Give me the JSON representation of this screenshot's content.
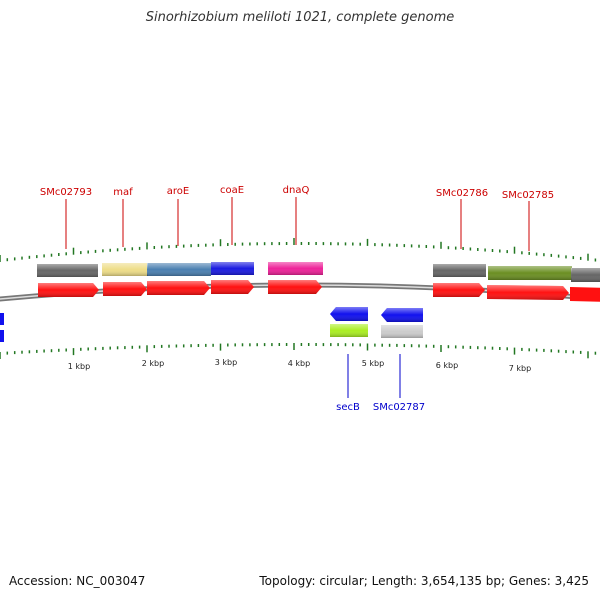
{
  "title": "Sinorhizobium meliloti 1021, complete genome",
  "footer": {
    "accession": "Accession: NC_003047",
    "stats": "Topology: circular; Length: 3,654,135 bp; Genes: 3,425"
  },
  "scale_labels": [
    "1 kbp",
    "2 kbp",
    "3 kbp",
    "4 kbp",
    "5 kbp",
    "6 kbp",
    "7 kbp"
  ],
  "forward_gene_labels": [
    "SMc02793",
    "maf",
    "aroE",
    "coaE",
    "dnaQ",
    "SMc02786",
    "SMc02785"
  ],
  "reverse_gene_labels": [
    "secB",
    "SMc02787"
  ],
  "colors": {
    "forward_label": "#cc0000",
    "reverse_label": "#0000cc",
    "forward_arrow": "#ff0000",
    "reverse_arrow": "#0000ee",
    "tick": "#227722",
    "backbone": "#888888"
  }
}
